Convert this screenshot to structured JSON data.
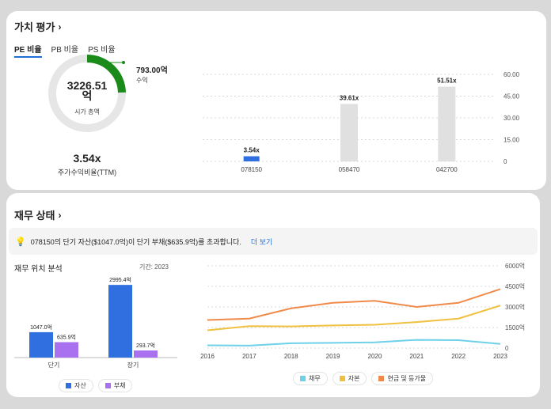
{
  "valuation": {
    "title": "가치 평가",
    "tabs": [
      "PE 비율",
      "PB 비율",
      "PS 비율"
    ],
    "market_cap_value": "3226.51",
    "market_cap_unit": "억",
    "market_cap_label": "시가 총액",
    "profit_value": "793.00억",
    "profit_label": "수익",
    "profit_share": 0.246,
    "pe_value": "3.54x",
    "pe_label": "주가수익비율(TTM)",
    "colors": {
      "ring_fill": "#1a8a1a",
      "ring_track": "#e6e6e6",
      "bar_primary": "#2f6fe0",
      "bar_other": "#e0e0e0"
    }
  },
  "chart_data": [
    {
      "type": "bar",
      "categories": [
        "078150",
        "058470",
        "042700"
      ],
      "values": [
        3.54,
        39.61,
        51.51
      ],
      "value_labels": [
        "3.54x",
        "39.61x",
        "51.51x"
      ],
      "ylim": [
        0,
        60
      ],
      "yticks": [
        "0",
        "15.00",
        "30.00",
        "45.00",
        "60.00"
      ],
      "ytick_values": [
        0,
        15,
        30,
        45,
        60
      ],
      "grid": true
    },
    {
      "type": "bar",
      "categories": [
        "단기",
        "장기"
      ],
      "series": [
        {
          "name": "자산",
          "values": [
            1047.0,
            2995.4
          ],
          "labels": [
            "1047.0억",
            "2995.4억"
          ],
          "color": "#2f6fe0"
        },
        {
          "name": "부채",
          "values": [
            635.9,
            293.7
          ],
          "labels": [
            "635.9억",
            "293.7억"
          ],
          "color": "#a970f0"
        }
      ],
      "ylim": [
        0,
        3000
      ]
    },
    {
      "type": "line",
      "x": [
        "2016",
        "2017",
        "2018",
        "2019",
        "2020",
        "2021",
        "2022",
        "2023"
      ],
      "series": [
        {
          "name": "채무",
          "values": [
            200,
            180,
            350,
            380,
            420,
            600,
            580,
            300
          ],
          "color": "#6fd0ea"
        },
        {
          "name": "자본",
          "values": [
            1300,
            1600,
            1580,
            1650,
            1700,
            1900,
            2150,
            3100
          ],
          "color": "#f0c040"
        },
        {
          "name": "현금 및 등가물",
          "values": [
            2050,
            2150,
            2900,
            3300,
            3450,
            3000,
            3300,
            4300
          ],
          "color": "#f08a4a"
        }
      ],
      "ylim": [
        0,
        6000
      ],
      "yticks": [
        "0",
        "1500억",
        "3000억",
        "4500억",
        "6000억"
      ],
      "ytick_values": [
        0,
        1500,
        3000,
        4500,
        6000
      ],
      "grid": true
    }
  ],
  "financial": {
    "title": "재무 상태",
    "info_text": "078150의 단기 자산($1047.0억)이 단기 부채($635.9억)를 초과합니다.",
    "more_label": "더 보기",
    "position_title": "재무 위치 분석",
    "period_label": "기간: 2023"
  }
}
